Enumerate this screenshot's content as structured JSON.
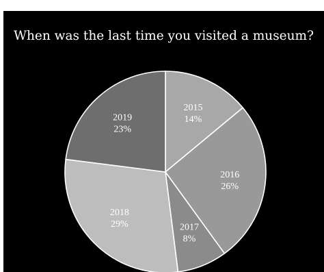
{
  "chart_data": {
    "type": "pie",
    "title": "When was the last time you visited a museum?",
    "slices": [
      {
        "label": "2015",
        "value": 14,
        "value_label": "14%",
        "color": "#a8a8a8"
      },
      {
        "label": "2016",
        "value": 26,
        "value_label": "26%",
        "color": "#999999"
      },
      {
        "label": "2017",
        "value": 8,
        "value_label": "8%",
        "color": "#8b8b8b"
      },
      {
        "label": "2018",
        "value": 29,
        "value_label": "29%",
        "color": "#bdbdbd"
      },
      {
        "label": "2019",
        "value": 23,
        "value_label": "23%",
        "color": "#6e6e6e"
      }
    ],
    "start_angle": "12 o'clock",
    "direction": "clockwise",
    "slice_border_color": "#ffffff",
    "background": "#000000",
    "text_color": "#ffffff"
  }
}
